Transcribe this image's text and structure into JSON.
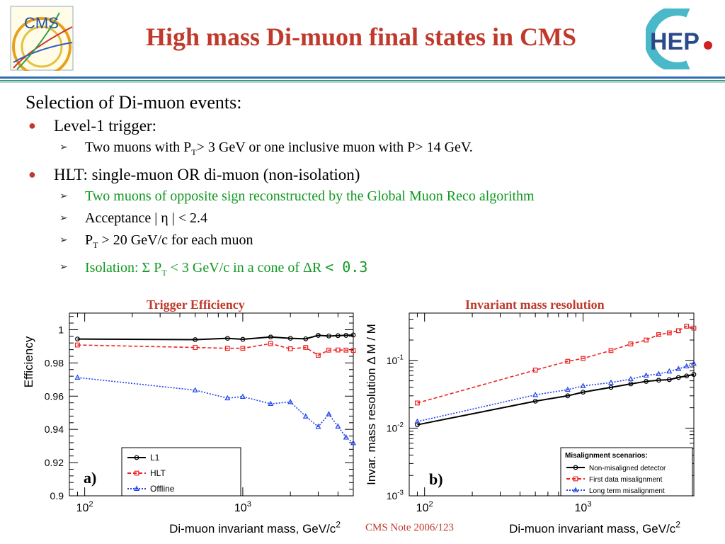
{
  "slide": {
    "title": "High mass Di-muon final states in CMS",
    "cms_logo_text": "CMS",
    "hep_logo_text": "HEP",
    "selection_heading": "Selection of Di-muon events:",
    "bullets": [
      {
        "label": "Level-1 trigger:",
        "items": [
          {
            "pre": "Two muons with P",
            "sub": "T",
            "post": "> 3 GeV or one inclusive muon with P> 14 GeV."
          }
        ]
      },
      {
        "label": "HLT: single-muon OR di-muon (non-isolation)",
        "items": [
          {
            "pre": "Two muons of opposite sign reconstructed by the Global Muon Reco algorithm",
            "green": true
          },
          {
            "pre": "Acceptance | η | < 2.4"
          },
          {
            "pre": "P",
            "sub": "T",
            "post": " > 20 GeV/c for each muon"
          },
          {
            "pre": "Isolation: Σ P",
            "sub": "T",
            "post": " < 3 GeV/c in a cone of ΔR ",
            "mono": "< 0.3",
            "green": true
          }
        ]
      }
    ],
    "chart1_heading": "Trigger Efficiency",
    "chart2_heading": "Invariant mass resolution",
    "footnote": "CMS Note 2006/123"
  },
  "colors": {
    "title": "#c0392b",
    "bullet": "#c0392b",
    "green_text": "#119922",
    "rule_blue": "#2f6fb0",
    "rule_green": "#3a9a7a",
    "series_black": "#000000",
    "series_red": "#ee2222",
    "series_blue": "#2244ee"
  },
  "chart_data": [
    {
      "type": "line",
      "panel_label": "a)",
      "xlabel": "Di-muon invariant mass,  GeV/c",
      "xlabel_sup": "2",
      "ylabel": "Efficiency",
      "xscale": "log",
      "xlim": [
        80,
        5000
      ],
      "ylim": [
        0.9,
        1.01
      ],
      "yticks": [
        0.9,
        0.92,
        0.94,
        0.96,
        0.98,
        1
      ],
      "ytick_labels": [
        "0.9",
        "0.92",
        "0.94",
        "0.96",
        "0.98",
        "1"
      ],
      "xticks": [
        100,
        1000
      ],
      "xtick_labels": [
        "10",
        "10"
      ],
      "xtick_sups": [
        "2",
        "3"
      ],
      "legend_position": "bottom-left",
      "x": [
        90,
        500,
        800,
        1000,
        1500,
        2000,
        2500,
        3000,
        3500,
        4000,
        4500,
        5000
      ],
      "series": [
        {
          "name": "L1",
          "color": "#000000",
          "dash": "",
          "marker": "circle",
          "values": [
            0.9944,
            0.994,
            0.9948,
            0.9942,
            0.9956,
            0.9948,
            0.9945,
            0.9966,
            0.9962,
            0.9964,
            0.9966,
            0.9968
          ]
        },
        {
          "name": "HLT",
          "color": "#ee2222",
          "dash": "5,3",
          "marker": "square",
          "values": [
            0.9908,
            0.9893,
            0.9888,
            0.9888,
            0.9916,
            0.9885,
            0.9893,
            0.9846,
            0.9877,
            0.9878,
            0.9877,
            0.9875
          ]
        },
        {
          "name": "Offline",
          "color": "#2244ee",
          "dash": "2,2",
          "marker": "triangle",
          "values": [
            0.9712,
            0.9636,
            0.9588,
            0.9597,
            0.9554,
            0.9565,
            0.9478,
            0.9416,
            0.9492,
            0.9418,
            0.9352,
            0.9318
          ]
        }
      ]
    },
    {
      "type": "line",
      "panel_label": "b)",
      "xlabel": "Di-muon invariant mass,  GeV/c",
      "xlabel_sup": "2",
      "ylabel": "Invar.  mass  resolution   Δ M / M",
      "xscale": "log",
      "yscale": "log",
      "xlim": [
        80,
        5000
      ],
      "ylim": [
        0.001,
        0.5
      ],
      "yticks": [
        0.001,
        0.01,
        0.1
      ],
      "ytick_labels": [
        "10",
        "10",
        "10"
      ],
      "ytick_sups": [
        "-3",
        "-2",
        "-1"
      ],
      "xticks": [
        100,
        1000
      ],
      "xtick_labels": [
        "10",
        "10"
      ],
      "xtick_sups": [
        "2",
        "3"
      ],
      "legend_title": "Misalignment scenarios:",
      "legend_position": "bottom-right",
      "x": [
        90,
        500,
        800,
        1000,
        1500,
        2000,
        2500,
        3000,
        3500,
        4000,
        4500,
        5000
      ],
      "series": [
        {
          "name": "Non-misaligned detector",
          "color": "#000000",
          "dash": "",
          "marker": "circle",
          "values": [
            0.0112,
            0.025,
            0.03,
            0.034,
            0.04,
            0.045,
            0.049,
            0.051,
            0.052,
            0.056,
            0.059,
            0.062
          ]
        },
        {
          "name": "First data misalignment",
          "color": "#ee2222",
          "dash": "5,3",
          "marker": "square",
          "values": [
            0.0235,
            0.072,
            0.097,
            0.107,
            0.14,
            0.175,
            0.2,
            0.24,
            0.255,
            0.275,
            0.32,
            0.3
          ]
        },
        {
          "name": "Long term misalignment",
          "color": "#2244ee",
          "dash": "2,2",
          "marker": "triangle",
          "values": [
            0.0125,
            0.031,
            0.037,
            0.042,
            0.047,
            0.053,
            0.06,
            0.063,
            0.069,
            0.075,
            0.082,
            0.09
          ]
        }
      ]
    }
  ]
}
